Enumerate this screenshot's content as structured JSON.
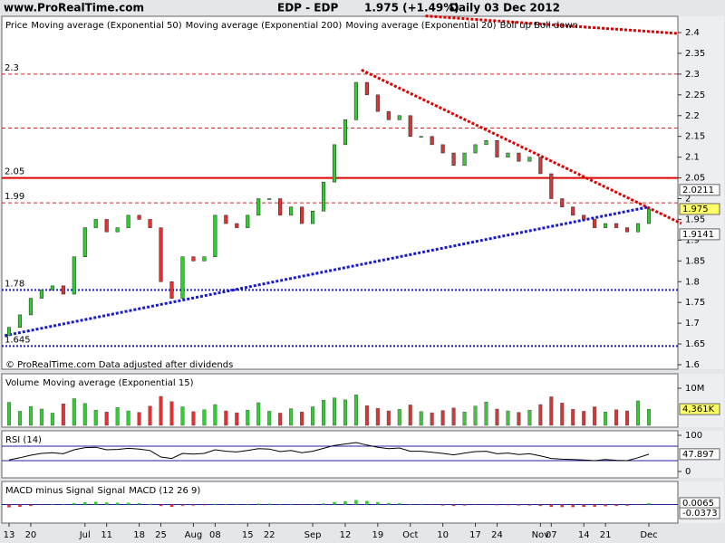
{
  "header": {
    "site": "www.ProRealTime.com",
    "symbol": "EDP - EDP",
    "quote": "1.975 (+1.49%)",
    "period": "Daily 03 Dec 2012"
  },
  "footer_note": "© ProRealTime.com  Data adjusted after dividends",
  "chart_data": [
    {
      "type": "candlestick",
      "legend": [
        {
          "name": "Price",
          "color": "#000000"
        },
        {
          "name": "Moving average (Exponential 50)",
          "color": "#000080"
        },
        {
          "name": "Moving average (Exponential 200)",
          "color": "#d00000"
        },
        {
          "name": "Moving average (Exponential 20)",
          "color": "#c8b400"
        },
        {
          "name": "Boll up Boll down",
          "color": "#00a0c0"
        }
      ],
      "categories": [
        "13",
        null,
        "20",
        null,
        null,
        null,
        null,
        "Jul",
        null,
        "11",
        null,
        null,
        "18",
        null,
        "25",
        null,
        null,
        "Aug",
        null,
        "08",
        null,
        null,
        "15",
        null,
        "22",
        null,
        null,
        null,
        "Sep",
        null,
        null,
        "12",
        null,
        null,
        "19",
        null,
        null,
        "Oct",
        null,
        null,
        "10",
        null,
        null,
        "17",
        null,
        "24",
        null,
        null,
        null,
        "Nov",
        "07",
        null,
        null,
        "14",
        null,
        "21",
        null,
        null,
        null,
        "Dec"
      ],
      "open_start": 1.67,
      "values": [
        1.69,
        1.72,
        1.76,
        1.78,
        1.79,
        1.77,
        1.86,
        1.93,
        1.95,
        1.92,
        1.93,
        1.96,
        1.95,
        1.93,
        1.8,
        1.76,
        1.86,
        1.85,
        1.86,
        1.96,
        1.94,
        1.93,
        1.96,
        2.0,
        2.0,
        1.96,
        1.98,
        1.94,
        1.97,
        2.04,
        2.13,
        2.19,
        2.28,
        2.25,
        2.21,
        2.19,
        2.2,
        2.15,
        2.15,
        2.13,
        2.11,
        2.08,
        2.11,
        2.13,
        2.14,
        2.1,
        2.11,
        2.09,
        2.1,
        2.06,
        2.0,
        1.98,
        1.96,
        1.95,
        1.93,
        1.94,
        1.93,
        1.92,
        1.94,
        1.975
      ],
      "up_color": "#33cc33",
      "down_color": "#dd3333",
      "ylim": [
        1.6,
        2.4
      ],
      "yticks": [
        1.6,
        1.65,
        1.7,
        1.75,
        1.8,
        1.85,
        1.9,
        1.95,
        2.0,
        2.05,
        2.1,
        2.15,
        2.2,
        2.25,
        2.3,
        2.35,
        2.4
      ],
      "levels": [
        {
          "value": 2.3,
          "label": "2.3",
          "color": "#dd2222",
          "style": "dashed"
        },
        {
          "value": 2.17,
          "color": "#dd2222",
          "style": "dashed"
        },
        {
          "value": 2.05,
          "label": "2.05",
          "color": "#dd0000",
          "style": "solid"
        },
        {
          "value": 1.99,
          "label": "1.99",
          "color": "#dd2222",
          "style": "dashed"
        },
        {
          "value": 1.78,
          "label": "1.78",
          "color": "#1a1acc",
          "style": "dotted"
        },
        {
          "value": 1.645,
          "label": "1.645",
          "color": "#1a1acc",
          "style": "dotted"
        }
      ],
      "trendlines": [
        {
          "color": "#dd0000",
          "points": [
            [
              32.5,
              2.31
            ],
            [
              62,
              1.94
            ]
          ]
        },
        {
          "color": "#dd0000",
          "points": [
            [
              38.4,
              2.44
            ],
            [
              61.6,
              2.398
            ]
          ]
        },
        {
          "color": "#1a1acc",
          "points": [
            [
              -0.4,
              1.67
            ],
            [
              59,
              1.98
            ]
          ]
        }
      ],
      "value_boxes": [
        {
          "value": 2.0211,
          "color": "#ffffff"
        },
        {
          "value": 1.975,
          "color": "#ffff66"
        },
        {
          "value": 1.9141,
          "color": "#ffffff"
        }
      ]
    },
    {
      "type": "bar",
      "legend": [
        {
          "name": "Volume",
          "color": "#208020"
        },
        {
          "name": "Moving average (Exponential 15)",
          "color": "#1060a0"
        }
      ],
      "values": [
        6200000,
        3800000,
        5100000,
        4400000,
        3300000,
        5800000,
        7200000,
        5900000,
        4100000,
        3600000,
        4800000,
        3900000,
        3500000,
        5200000,
        7800000,
        6400000,
        5000000,
        3700000,
        4200000,
        5600000,
        3900000,
        3400000,
        4100000,
        6100000,
        3800000,
        3300000,
        4500000,
        3600000,
        5000000,
        6800000,
        7400000,
        6900000,
        8200000,
        5300000,
        4600000,
        3900000,
        4300000,
        5500000,
        3700000,
        3400000,
        4000000,
        4700000,
        3600000,
        5200000,
        6300000,
        4400000,
        3900000,
        3500000,
        4100000,
        5600000,
        7700000,
        6000000,
        4300000,
        3800000,
        5000000,
        3600000,
        4200000,
        3900000,
        6600000,
        4361000
      ],
      "up_color": "#33cc33",
      "down_color": "#dd3333",
      "ylim": [
        0,
        10000000
      ],
      "yticks": [
        {
          "value": 10000000,
          "label": "10M"
        }
      ],
      "value_boxes": [
        {
          "value": 4361000,
          "label": "4,361K",
          "color": "#ffff66"
        }
      ]
    },
    {
      "type": "line",
      "legend": [
        {
          "name": "RSI (14)",
          "color": "#000000"
        }
      ],
      "values": [
        32,
        38,
        45,
        50,
        52,
        49,
        60,
        66,
        67,
        60,
        61,
        64,
        62,
        58,
        40,
        36,
        50,
        48,
        50,
        60,
        56,
        54,
        58,
        63,
        62,
        55,
        58,
        52,
        56,
        64,
        72,
        76,
        80,
        73,
        67,
        63,
        65,
        56,
        56,
        53,
        50,
        46,
        51,
        55,
        56,
        49,
        51,
        47,
        49,
        43,
        36,
        34,
        33,
        32,
        30,
        33,
        31,
        30,
        38,
        47.897
      ],
      "color": "#000000",
      "ylim": [
        0,
        100
      ],
      "yticks": [
        0,
        100
      ],
      "bands": [
        70,
        30
      ],
      "band_color": "#2020a0",
      "value_boxes": [
        {
          "value": 47.897,
          "color": "#ffffff"
        }
      ]
    },
    {
      "type": "histogram-line",
      "legend": [
        {
          "name": "MACD minus Signal",
          "color": "#20a020"
        },
        {
          "name": "Signal",
          "color": "#4040d0"
        },
        {
          "name": "MACD (12 26 9)",
          "color": "#000000"
        }
      ],
      "values": [
        -0.012,
        -0.01,
        -0.006,
        -0.002,
        0.001,
        0.002,
        0.006,
        0.01,
        0.012,
        0.009,
        0.008,
        0.008,
        0.006,
        0.003,
        -0.006,
        -0.01,
        -0.005,
        -0.004,
        -0.003,
        0.003,
        0.002,
        0.001,
        0.002,
        0.004,
        0.004,
        0.001,
        0.002,
        -0.001,
        0.001,
        0.005,
        0.011,
        0.015,
        0.02,
        0.016,
        0.011,
        0.007,
        0.006,
        0.001,
        0.0,
        -0.002,
        -0.004,
        -0.006,
        -0.004,
        -0.002,
        -0.001,
        -0.003,
        -0.003,
        -0.004,
        -0.004,
        -0.006,
        -0.01,
        -0.011,
        -0.011,
        -0.01,
        -0.009,
        -0.007,
        -0.006,
        -0.005,
        -0.002,
        0.0065
      ],
      "up_color": "#33cc33",
      "down_color": "#dd3333",
      "ylim": [
        -0.08,
        0.1
      ],
      "value_boxes": [
        {
          "value": 0.0065,
          "color": "#ffffff"
        },
        {
          "value": -0.0373,
          "color": "#ffffff"
        }
      ]
    }
  ]
}
